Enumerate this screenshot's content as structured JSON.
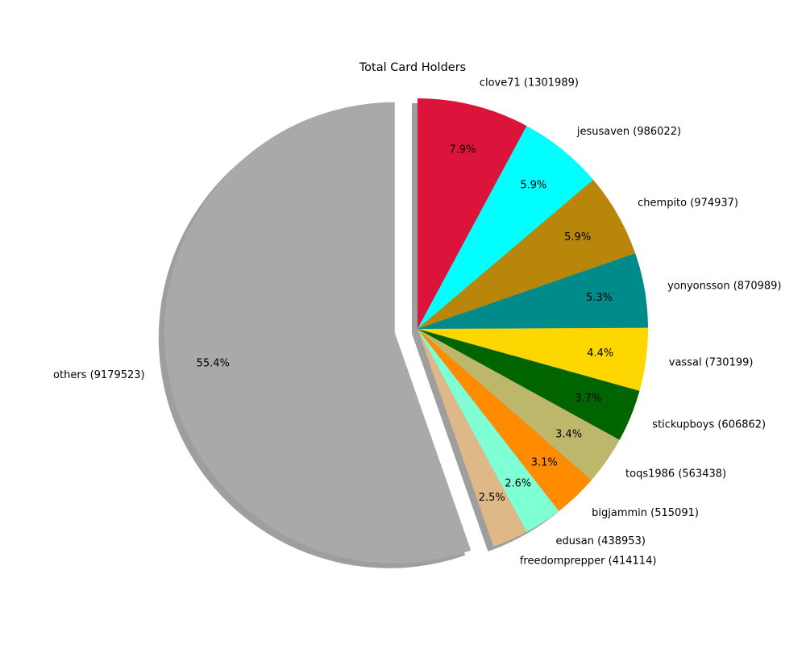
{
  "chart_data": {
    "type": "pie",
    "title": "Total Card Holders",
    "start_angle_deg": 90,
    "direction": "clockwise",
    "shadow": true,
    "slices": [
      {
        "label": "clove71 (1301989)",
        "value": 1301989,
        "pct": "7.9%",
        "color": "#DC143C"
      },
      {
        "label": "jesusaven (986022)",
        "value": 986022,
        "pct": "5.9%",
        "color": "#00FFFF"
      },
      {
        "label": "chempito (974937)",
        "value": 974937,
        "pct": "5.9%",
        "color": "#B8860B"
      },
      {
        "label": "yonyonsson (870989)",
        "value": 870989,
        "pct": "5.3%",
        "color": "#008B8B"
      },
      {
        "label": "vassal (730199)",
        "value": 730199,
        "pct": "4.4%",
        "color": "#FFD700"
      },
      {
        "label": "stickupboys (606862)",
        "value": 606862,
        "pct": "3.7%",
        "color": "#006400"
      },
      {
        "label": "toqs1986 (563438)",
        "value": 563438,
        "pct": "3.4%",
        "color": "#BDB76B"
      },
      {
        "label": "bigjammin (515091)",
        "value": 515091,
        "pct": "3.1%",
        "color": "#FF8C00"
      },
      {
        "label": "edusan (438953)",
        "value": 438953,
        "pct": "2.6%",
        "color": "#7FFFD4"
      },
      {
        "label": "freedomprepper (414114)",
        "value": 414114,
        "pct": "2.5%",
        "color": "#DEB887"
      },
      {
        "label": "others (9179523)",
        "value": 9179523,
        "pct": "55.4%",
        "color": "#A9A9A9",
        "exploded": true
      }
    ]
  }
}
